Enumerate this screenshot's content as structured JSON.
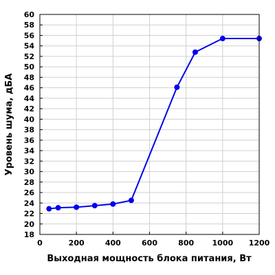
{
  "chart_data": {
    "type": "line",
    "title": "",
    "xlabel": "Выходная мощность блока питания, Вт",
    "ylabel": "Уровень шума, дБА",
    "xlim": [
      0,
      1200
    ],
    "ylim": [
      18,
      60
    ],
    "x_ticks": [
      "0",
      "200",
      "400",
      "600",
      "800",
      "1000",
      "1200"
    ],
    "y_ticks": [
      "18",
      "20",
      "22",
      "24",
      "26",
      "28",
      "30",
      "32",
      "34",
      "36",
      "38",
      "40",
      "42",
      "44",
      "46",
      "48",
      "50",
      "52",
      "54",
      "56",
      "58",
      "60"
    ],
    "grid": true,
    "series": [
      {
        "color": "#0000ee",
        "x": [
          50,
          100,
          200,
          300,
          400,
          500,
          750,
          850,
          1000,
          1200
        ],
        "y": [
          22.9,
          23.1,
          23.2,
          23.5,
          23.8,
          24.5,
          46.1,
          52.8,
          55.4,
          55.4
        ]
      }
    ]
  }
}
